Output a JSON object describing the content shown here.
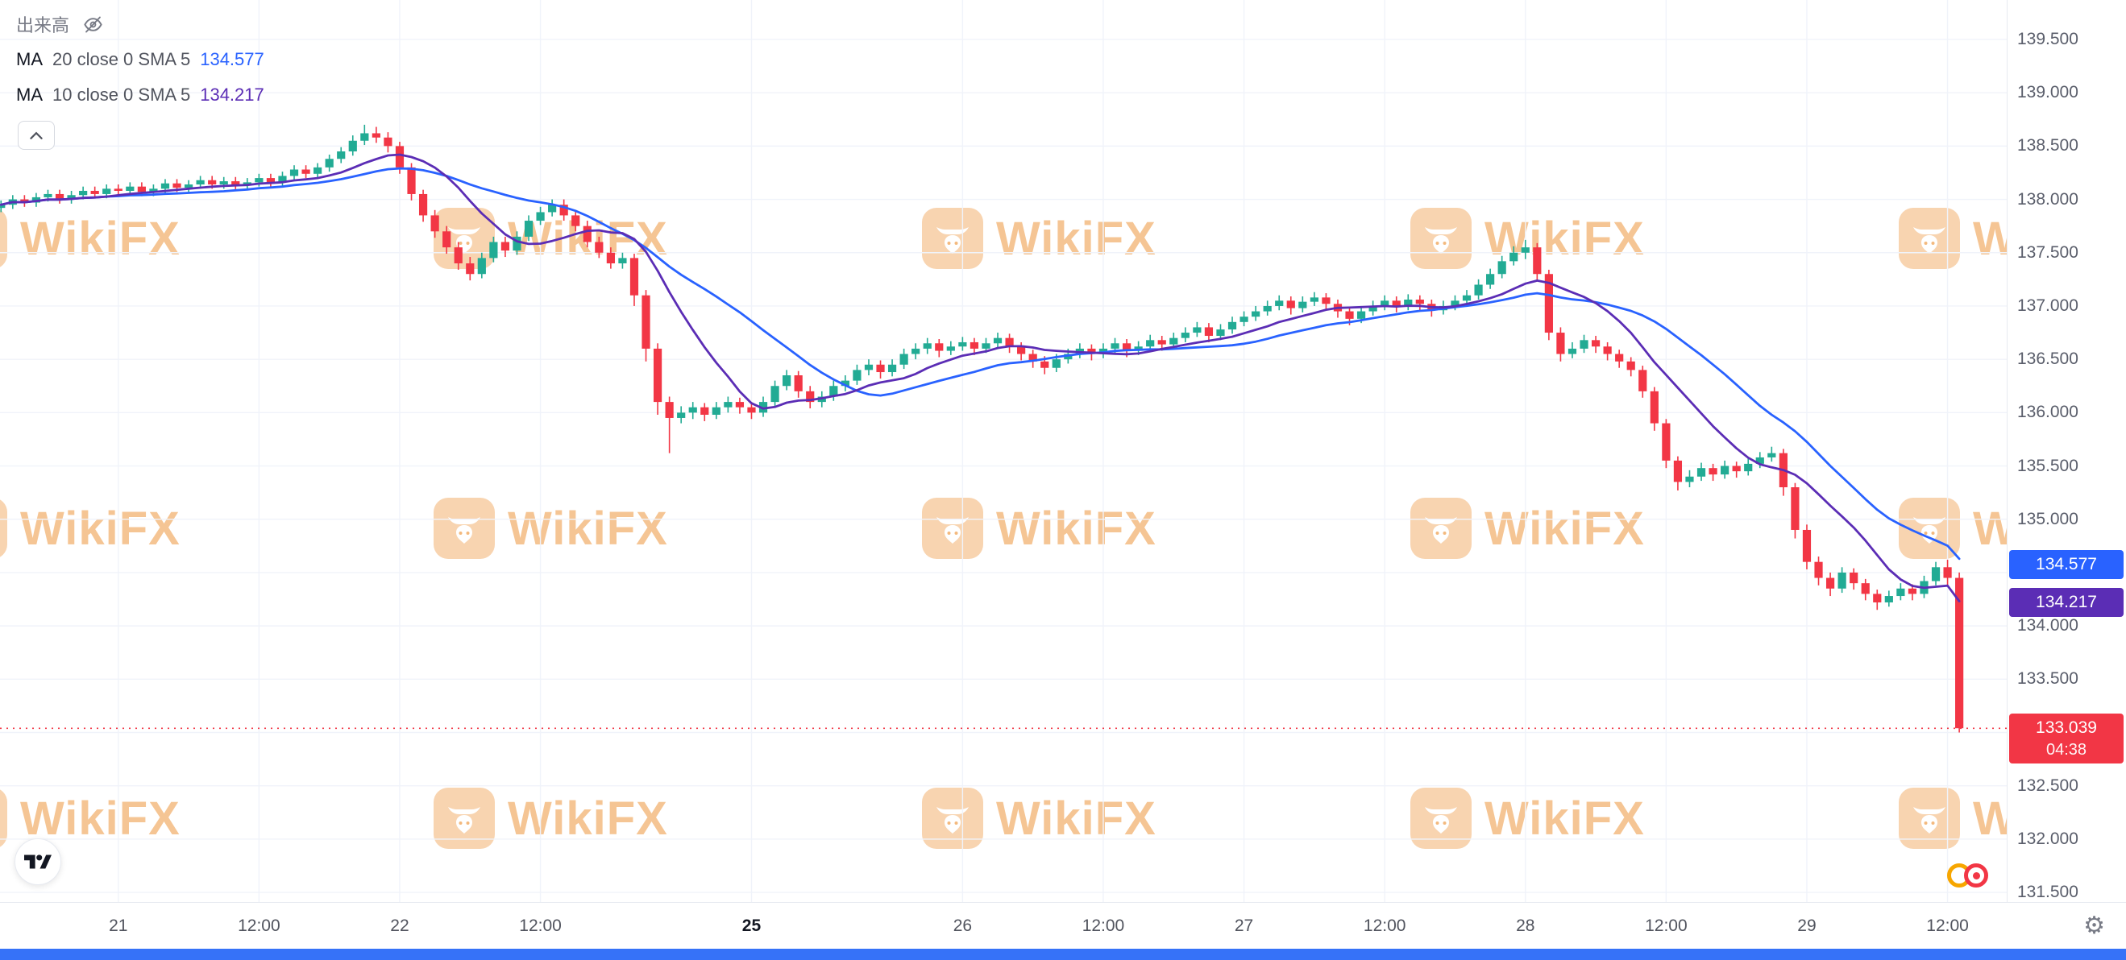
{
  "watermark": {
    "text": "WikiFX",
    "color": "#f2b170"
  },
  "colors": {
    "up": "#22ab94",
    "down": "#f23645",
    "ma20": "#2962ff",
    "ma10": "#5b2db5",
    "bottom_bar": "#3672f8",
    "grid": "#f0f3fa"
  },
  "icons": {
    "gear_glyph": "⚙"
  },
  "legend": {
    "volume_label": "出来高",
    "rows": [
      {
        "name": "MA",
        "params": "20 close 0 SMA 5",
        "value": "134.577",
        "color": "#2962ff"
      },
      {
        "name": "MA",
        "params": "10 close 0 SMA 5",
        "value": "134.217",
        "color": "#5b2db5"
      }
    ]
  },
  "price_axis": {
    "badges": [
      {
        "text": "134.577",
        "price": 134.577,
        "color": "#2962ff"
      },
      {
        "text": "134.217",
        "price": 134.217,
        "color": "#5b2db5"
      },
      {
        "text": "133.039",
        "sub": "04:38",
        "price": 133.039,
        "color": "#f23645"
      }
    ]
  },
  "chart_data": {
    "type": "candlestick",
    "up_color": "#22ab94",
    "down_color": "#f23645",
    "ylim": [
      131.41,
      139.87
    ],
    "y_ticks": [
      "139.500",
      "139.000",
      "138.500",
      "138.000",
      "137.500",
      "137.000",
      "136.500",
      "136.000",
      "135.500",
      "135.000",
      "134.500",
      "134.000",
      "133.500",
      "133.000",
      "132.500",
      "132.000",
      "131.500"
    ],
    "x_ticks": [
      {
        "i": 10,
        "label": "21"
      },
      {
        "i": 22,
        "label": "12:00"
      },
      {
        "i": 34,
        "label": "22"
      },
      {
        "i": 46,
        "label": "12:00"
      },
      {
        "i": 64,
        "label": "25",
        "bold": true
      },
      {
        "i": 82,
        "label": "26"
      },
      {
        "i": 94,
        "label": "12:00"
      },
      {
        "i": 106,
        "label": "27"
      },
      {
        "i": 118,
        "label": "12:00"
      },
      {
        "i": 130,
        "label": "28"
      },
      {
        "i": 142,
        "label": "12:00"
      },
      {
        "i": 154,
        "label": "29"
      },
      {
        "i": 166,
        "label": "12:00"
      }
    ],
    "overlays": [
      {
        "name": "MA20",
        "type": "sma",
        "length": 20,
        "color": "#2962ff",
        "value": 134.577
      },
      {
        "name": "MA10",
        "type": "sma",
        "length": 10,
        "color": "#5b2db5",
        "value": 134.217
      }
    ],
    "last_price": 133.039,
    "countdown": "04:38",
    "candles": [
      [
        137.92,
        137.99,
        137.88,
        137.95
      ],
      [
        137.95,
        138.04,
        137.91,
        138.0
      ],
      [
        138.0,
        138.04,
        137.93,
        137.97
      ],
      [
        137.97,
        138.06,
        137.93,
        138.02
      ],
      [
        138.02,
        138.09,
        137.98,
        138.05
      ],
      [
        138.05,
        138.09,
        137.96,
        138.0
      ],
      [
        138.0,
        138.08,
        137.96,
        138.04
      ],
      [
        138.04,
        138.12,
        138.0,
        138.08
      ],
      [
        138.08,
        138.12,
        138.01,
        138.05
      ],
      [
        138.05,
        138.14,
        138.01,
        138.1
      ],
      [
        138.1,
        138.14,
        138.04,
        138.08
      ],
      [
        138.08,
        138.16,
        138.04,
        138.12
      ],
      [
        138.12,
        138.16,
        138.03,
        138.07
      ],
      [
        138.07,
        138.14,
        138.03,
        138.1
      ],
      [
        138.1,
        138.19,
        138.06,
        138.15
      ],
      [
        138.15,
        138.19,
        138.07,
        138.11
      ],
      [
        138.11,
        138.18,
        138.07,
        138.14
      ],
      [
        138.14,
        138.22,
        138.1,
        138.18
      ],
      [
        138.18,
        138.22,
        138.1,
        138.14
      ],
      [
        138.14,
        138.21,
        138.1,
        138.17
      ],
      [
        138.17,
        138.21,
        138.09,
        138.13
      ],
      [
        138.13,
        138.2,
        138.09,
        138.16
      ],
      [
        138.16,
        138.24,
        138.12,
        138.2
      ],
      [
        138.2,
        138.24,
        138.12,
        138.16
      ],
      [
        138.16,
        138.26,
        138.12,
        138.22
      ],
      [
        138.22,
        138.32,
        138.18,
        138.28
      ],
      [
        138.28,
        138.32,
        138.2,
        138.24
      ],
      [
        138.24,
        138.34,
        138.2,
        138.3
      ],
      [
        138.3,
        138.42,
        138.26,
        138.38
      ],
      [
        138.38,
        138.49,
        138.34,
        138.45
      ],
      [
        138.45,
        138.6,
        138.41,
        138.55
      ],
      [
        138.55,
        138.7,
        138.51,
        138.62
      ],
      [
        138.62,
        138.68,
        138.53,
        138.58
      ],
      [
        138.58,
        138.63,
        138.44,
        138.5
      ],
      [
        138.5,
        138.54,
        138.24,
        138.3
      ],
      [
        138.3,
        138.34,
        137.99,
        138.05
      ],
      [
        138.05,
        138.09,
        137.79,
        137.85
      ],
      [
        137.85,
        137.9,
        137.64,
        137.7
      ],
      [
        137.7,
        137.75,
        137.49,
        137.55
      ],
      [
        137.55,
        137.6,
        137.34,
        137.4
      ],
      [
        137.4,
        137.46,
        137.24,
        137.3
      ],
      [
        137.3,
        137.5,
        137.26,
        137.45
      ],
      [
        137.45,
        137.65,
        137.41,
        137.6
      ],
      [
        137.6,
        137.65,
        137.46,
        137.52
      ],
      [
        137.52,
        137.7,
        137.48,
        137.65
      ],
      [
        137.65,
        137.85,
        137.61,
        137.8
      ],
      [
        137.8,
        137.93,
        137.76,
        137.88
      ],
      [
        137.88,
        138.0,
        137.84,
        137.95
      ],
      [
        137.95,
        138.0,
        137.8,
        137.85
      ],
      [
        137.85,
        137.9,
        137.7,
        137.75
      ],
      [
        137.75,
        137.8,
        137.55,
        137.6
      ],
      [
        137.6,
        137.65,
        137.45,
        137.5
      ],
      [
        137.5,
        137.55,
        137.35,
        137.4
      ],
      [
        137.4,
        137.5,
        137.35,
        137.45
      ],
      [
        137.45,
        137.49,
        137.0,
        137.1
      ],
      [
        137.1,
        137.15,
        136.48,
        136.6
      ],
      [
        136.6,
        136.65,
        135.98,
        136.1
      ],
      [
        136.1,
        136.15,
        135.62,
        135.95
      ],
      [
        135.95,
        136.06,
        135.9,
        136.0
      ],
      [
        136.0,
        136.1,
        135.94,
        136.05
      ],
      [
        136.05,
        136.09,
        135.92,
        135.98
      ],
      [
        135.98,
        136.1,
        135.94,
        136.05
      ],
      [
        136.05,
        136.15,
        136.0,
        136.1
      ],
      [
        136.1,
        136.14,
        135.99,
        136.05
      ],
      [
        136.05,
        136.1,
        135.94,
        136.0
      ],
      [
        136.0,
        136.15,
        135.96,
        136.1
      ],
      [
        136.1,
        136.3,
        136.06,
        136.25
      ],
      [
        136.25,
        136.4,
        136.21,
        136.35
      ],
      [
        136.35,
        136.39,
        136.14,
        136.2
      ],
      [
        136.2,
        136.25,
        136.04,
        136.1
      ],
      [
        136.1,
        136.2,
        136.05,
        136.15
      ],
      [
        136.15,
        136.3,
        136.11,
        136.25
      ],
      [
        136.25,
        136.35,
        136.2,
        136.3
      ],
      [
        136.3,
        136.45,
        136.26,
        136.4
      ],
      [
        136.4,
        136.5,
        136.35,
        136.45
      ],
      [
        136.45,
        136.49,
        136.32,
        136.38
      ],
      [
        136.38,
        136.5,
        136.34,
        136.45
      ],
      [
        136.45,
        136.6,
        136.41,
        136.55
      ],
      [
        136.55,
        136.65,
        136.5,
        136.6
      ],
      [
        136.6,
        136.7,
        136.55,
        136.65
      ],
      [
        136.65,
        136.69,
        136.52,
        136.58
      ],
      [
        136.58,
        136.67,
        136.54,
        136.62
      ],
      [
        136.62,
        136.71,
        136.58,
        136.66
      ],
      [
        136.66,
        136.7,
        136.54,
        136.6
      ],
      [
        136.6,
        136.7,
        136.56,
        136.65
      ],
      [
        136.65,
        136.75,
        136.61,
        136.7
      ],
      [
        136.7,
        136.74,
        136.56,
        136.62
      ],
      [
        136.62,
        136.66,
        136.49,
        136.55
      ],
      [
        136.55,
        136.59,
        136.42,
        136.48
      ],
      [
        136.48,
        136.53,
        136.36,
        136.42
      ],
      [
        136.42,
        136.55,
        136.38,
        136.5
      ],
      [
        136.5,
        136.6,
        136.46,
        136.55
      ],
      [
        136.55,
        136.65,
        136.51,
        136.6
      ],
      [
        136.6,
        136.64,
        136.49,
        136.55
      ],
      [
        136.55,
        136.65,
        136.51,
        136.6
      ],
      [
        136.6,
        136.7,
        136.56,
        136.65
      ],
      [
        136.65,
        136.69,
        136.52,
        136.58
      ],
      [
        136.58,
        136.67,
        136.54,
        136.62
      ],
      [
        136.62,
        136.73,
        136.58,
        136.68
      ],
      [
        136.68,
        136.72,
        136.58,
        136.64
      ],
      [
        136.64,
        136.75,
        136.6,
        136.7
      ],
      [
        136.7,
        136.8,
        136.66,
        136.75
      ],
      [
        136.75,
        136.85,
        136.71,
        136.8
      ],
      [
        136.8,
        136.84,
        136.66,
        136.72
      ],
      [
        136.72,
        136.83,
        136.68,
        136.78
      ],
      [
        136.78,
        136.9,
        136.74,
        136.85
      ],
      [
        136.85,
        136.95,
        136.81,
        136.9
      ],
      [
        136.9,
        137.0,
        136.86,
        136.95
      ],
      [
        136.95,
        137.05,
        136.91,
        137.0
      ],
      [
        137.0,
        137.1,
        136.96,
        137.05
      ],
      [
        137.05,
        137.09,
        136.92,
        136.98
      ],
      [
        136.98,
        137.09,
        136.94,
        137.04
      ],
      [
        137.04,
        137.13,
        137.0,
        137.08
      ],
      [
        137.08,
        137.12,
        136.96,
        137.02
      ],
      [
        137.02,
        137.06,
        136.89,
        136.95
      ],
      [
        136.95,
        136.99,
        136.82,
        136.88
      ],
      [
        136.88,
        137.0,
        136.84,
        136.95
      ],
      [
        136.95,
        137.05,
        136.91,
        137.0
      ],
      [
        137.0,
        137.1,
        136.96,
        137.05
      ],
      [
        137.05,
        137.09,
        136.94,
        137.0
      ],
      [
        137.0,
        137.11,
        136.96,
        137.06
      ],
      [
        137.06,
        137.1,
        136.96,
        137.02
      ],
      [
        137.02,
        137.06,
        136.9,
        136.96
      ],
      [
        136.96,
        137.05,
        136.92,
        137.0
      ],
      [
        137.0,
        137.1,
        136.96,
        137.05
      ],
      [
        137.05,
        137.15,
        137.01,
        137.1
      ],
      [
        137.1,
        137.25,
        137.06,
        137.2
      ],
      [
        137.2,
        137.35,
        137.16,
        137.3
      ],
      [
        137.3,
        137.47,
        137.26,
        137.42
      ],
      [
        137.42,
        137.56,
        137.38,
        137.5
      ],
      [
        137.5,
        137.62,
        137.44,
        137.55
      ],
      [
        137.55,
        137.59,
        137.24,
        137.3
      ],
      [
        137.3,
        137.34,
        136.68,
        136.75
      ],
      [
        136.75,
        136.8,
        136.48,
        136.55
      ],
      [
        136.55,
        136.66,
        136.51,
        136.6
      ],
      [
        136.6,
        136.73,
        136.56,
        136.68
      ],
      [
        136.68,
        136.72,
        136.56,
        136.62
      ],
      [
        136.62,
        136.66,
        136.49,
        136.55
      ],
      [
        136.55,
        136.59,
        136.42,
        136.48
      ],
      [
        136.48,
        136.52,
        136.34,
        136.4
      ],
      [
        136.4,
        136.44,
        136.14,
        136.2
      ],
      [
        136.2,
        136.24,
        135.83,
        135.9
      ],
      [
        135.9,
        135.94,
        135.48,
        135.55
      ],
      [
        135.55,
        135.59,
        135.27,
        135.35
      ],
      [
        135.35,
        135.46,
        135.3,
        135.4
      ],
      [
        135.4,
        135.53,
        135.36,
        135.48
      ],
      [
        135.48,
        135.52,
        135.36,
        135.42
      ],
      [
        135.42,
        135.55,
        135.38,
        135.5
      ],
      [
        135.5,
        135.54,
        135.39,
        135.45
      ],
      [
        135.45,
        135.57,
        135.41,
        135.52
      ],
      [
        135.52,
        135.63,
        135.48,
        135.58
      ],
      [
        135.58,
        135.68,
        135.54,
        135.62
      ],
      [
        135.62,
        135.66,
        135.22,
        135.3
      ],
      [
        135.3,
        135.34,
        134.82,
        134.9
      ],
      [
        134.9,
        134.95,
        134.53,
        134.6
      ],
      [
        134.6,
        134.65,
        134.38,
        134.45
      ],
      [
        134.45,
        134.5,
        134.28,
        134.35
      ],
      [
        134.35,
        134.55,
        134.31,
        134.5
      ],
      [
        134.5,
        134.54,
        134.34,
        134.4
      ],
      [
        134.4,
        134.44,
        134.24,
        134.3
      ],
      [
        134.3,
        134.34,
        134.15,
        134.22
      ],
      [
        134.22,
        134.33,
        134.18,
        134.28
      ],
      [
        134.28,
        134.4,
        134.24,
        134.35
      ],
      [
        134.35,
        134.39,
        134.24,
        134.3
      ],
      [
        134.3,
        134.47,
        134.26,
        134.42
      ],
      [
        134.42,
        134.6,
        134.38,
        134.55
      ],
      [
        134.55,
        134.62,
        134.38,
        134.45
      ],
      [
        134.45,
        134.5,
        133.0,
        133.04
      ]
    ]
  }
}
